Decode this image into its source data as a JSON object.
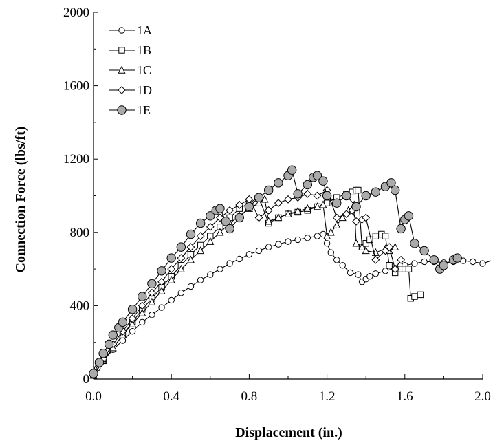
{
  "chart_data": {
    "type": "scatter",
    "title": "",
    "xlabel": "Displacement (in.)",
    "ylabel": "Connection Force (lbs/ft)",
    "xlim": [
      0,
      2.0
    ],
    "ylim": [
      0,
      2000
    ],
    "xticks": [
      "0.0",
      "0.4",
      "0.8",
      "1.2",
      "1.6",
      "2.0"
    ],
    "yticks": [
      "0",
      "400",
      "800",
      "1200",
      "1600",
      "2000"
    ],
    "grid": false,
    "legend_position": "top-left",
    "series": [
      {
        "name": "1A",
        "marker": "circle",
        "marker_fill": "#ffffff",
        "x": [
          0,
          0.02,
          0.05,
          0.1,
          0.15,
          0.2,
          0.25,
          0.3,
          0.35,
          0.4,
          0.45,
          0.5,
          0.55,
          0.6,
          0.65,
          0.7,
          0.75,
          0.8,
          0.85,
          0.9,
          0.95,
          1.0,
          1.05,
          1.1,
          1.15,
          1.18,
          1.2,
          1.22,
          1.25,
          1.28,
          1.32,
          1.36,
          1.38,
          1.4,
          1.42,
          1.45,
          1.5,
          1.55,
          1.6,
          1.65,
          1.7,
          1.75,
          1.8,
          1.85,
          1.9,
          1.95,
          2.0
        ],
        "y": [
          20,
          60,
          100,
          160,
          210,
          260,
          310,
          350,
          390,
          430,
          470,
          505,
          540,
          570,
          600,
          630,
          655,
          680,
          700,
          720,
          735,
          750,
          760,
          770,
          780,
          790,
          740,
          690,
          650,
          620,
          580,
          570,
          530,
          545,
          560,
          575,
          590,
          605,
          620,
          630,
          640,
          640,
          635,
          640,
          645,
          640,
          630
        ]
      },
      {
        "name": "1B",
        "marker": "square",
        "marker_fill": "#ffffff",
        "x": [
          0,
          0.05,
          0.1,
          0.15,
          0.2,
          0.25,
          0.3,
          0.35,
          0.4,
          0.45,
          0.5,
          0.55,
          0.6,
          0.65,
          0.7,
          0.75,
          0.8,
          0.85,
          0.9,
          0.95,
          1.0,
          1.05,
          1.1,
          1.15,
          1.2,
          1.25,
          1.3,
          1.33,
          1.35,
          1.36,
          1.38,
          1.4,
          1.42,
          1.45,
          1.48,
          1.5,
          1.52,
          1.55,
          1.58,
          1.6,
          1.62,
          1.63,
          1.65,
          1.68
        ],
        "y": [
          20,
          100,
          170,
          240,
          310,
          380,
          440,
          500,
          560,
          620,
          680,
          730,
          780,
          830,
          880,
          930,
          960,
          990,
          850,
          880,
          900,
          910,
          920,
          940,
          960,
          990,
          1010,
          1020,
          1030,
          1030,
          720,
          740,
          760,
          780,
          790,
          780,
          620,
          580,
          600,
          600,
          600,
          440,
          450,
          460
        ]
      },
      {
        "name": "1C",
        "marker": "triangle",
        "marker_fill": "#ffffff",
        "x": [
          0,
          0.05,
          0.1,
          0.15,
          0.2,
          0.25,
          0.3,
          0.35,
          0.4,
          0.45,
          0.5,
          0.55,
          0.6,
          0.65,
          0.7,
          0.75,
          0.8,
          0.85,
          0.88,
          0.9,
          0.95,
          1.0,
          1.05,
          1.1,
          1.15,
          1.18,
          1.2,
          1.22,
          1.25,
          1.28,
          1.31,
          1.34,
          1.35,
          1.38,
          1.4,
          1.45,
          1.5,
          1.52,
          1.55
        ],
        "y": [
          20,
          100,
          170,
          240,
          300,
          360,
          420,
          480,
          540,
          600,
          650,
          700,
          750,
          800,
          850,
          890,
          930,
          960,
          980,
          860,
          880,
          900,
          915,
          930,
          940,
          950,
          780,
          800,
          840,
          880,
          920,
          950,
          740,
          720,
          700,
          690,
          710,
          700,
          720
        ]
      },
      {
        "name": "1D",
        "marker": "diamond",
        "marker_fill": "#ffffff",
        "x": [
          0,
          0.05,
          0.1,
          0.15,
          0.2,
          0.25,
          0.3,
          0.35,
          0.4,
          0.45,
          0.5,
          0.55,
          0.6,
          0.65,
          0.7,
          0.75,
          0.8,
          0.85,
          0.9,
          0.95,
          1.0,
          1.05,
          1.1,
          1.15,
          1.2,
          1.25,
          1.3,
          1.33,
          1.35,
          1.38,
          1.4,
          1.45,
          1.5,
          1.52,
          1.55,
          1.58
        ],
        "y": [
          20,
          110,
          190,
          260,
          330,
          400,
          470,
          530,
          600,
          660,
          720,
          780,
          830,
          880,
          920,
          950,
          980,
          880,
          920,
          960,
          980,
          990,
          1010,
          1000,
          1030,
          880,
          900,
          920,
          860,
          870,
          880,
          650,
          700,
          720,
          600,
          650
        ]
      },
      {
        "name": "1E",
        "marker": "circle",
        "marker_fill": "#aaaaaa",
        "x": [
          0,
          0.03,
          0.05,
          0.08,
          0.1,
          0.13,
          0.15,
          0.2,
          0.25,
          0.3,
          0.35,
          0.4,
          0.45,
          0.5,
          0.55,
          0.6,
          0.63,
          0.65,
          0.68,
          0.7,
          0.75,
          0.8,
          0.85,
          0.9,
          0.95,
          1.0,
          1.02,
          1.05,
          1.1,
          1.13,
          1.15,
          1.18,
          1.2,
          1.25,
          1.3,
          1.35,
          1.4,
          1.45,
          1.5,
          1.53,
          1.55,
          1.58,
          1.6,
          1.62,
          1.65,
          1.7,
          1.75,
          1.78,
          1.8,
          1.85,
          1.87
        ],
        "y": [
          30,
          90,
          140,
          190,
          240,
          280,
          310,
          380,
          450,
          520,
          590,
          660,
          720,
          790,
          850,
          890,
          920,
          930,
          860,
          820,
          880,
          940,
          990,
          1030,
          1070,
          1110,
          1140,
          1010,
          1060,
          1100,
          1110,
          1080,
          1000,
          960,
          1000,
          940,
          1000,
          1020,
          1050,
          1070,
          1030,
          820,
          870,
          890,
          740,
          700,
          650,
          600,
          620,
          650,
          660
        ]
      }
    ]
  }
}
